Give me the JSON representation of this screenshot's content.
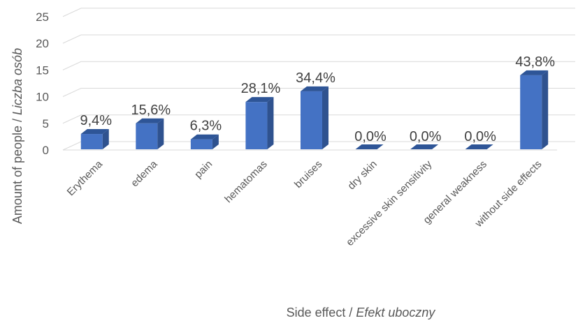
{
  "chart_data": {
    "type": "bar",
    "style": "3d-clustered-column",
    "categories": [
      "Erythema",
      "edema",
      "pain",
      "hematomas",
      "bruises",
      "dry skin",
      "excessive skin sensitivity",
      "general weakness",
      "without side effects"
    ],
    "values": [
      3,
      5,
      2,
      9,
      11,
      0,
      0,
      0,
      14
    ],
    "data_labels": [
      "9,4%",
      "15,6%",
      "6,3%",
      "28,1%",
      "34,4%",
      "0,0%",
      "0,0%",
      "0,0%",
      "43,8%"
    ],
    "yticks": [
      0,
      5,
      10,
      15,
      20,
      25
    ],
    "ylim": [
      0,
      25
    ],
    "ylabel": "Amount of people",
    "ylabel_italic": "Liczba osób",
    "xlabel": "Side effect",
    "xlabel_italic": "Efekt uboczny",
    "grid": true,
    "legend": "none",
    "colors": {
      "front": "#4472c4",
      "side": "#2f528f",
      "top": "#2e5597"
    }
  }
}
